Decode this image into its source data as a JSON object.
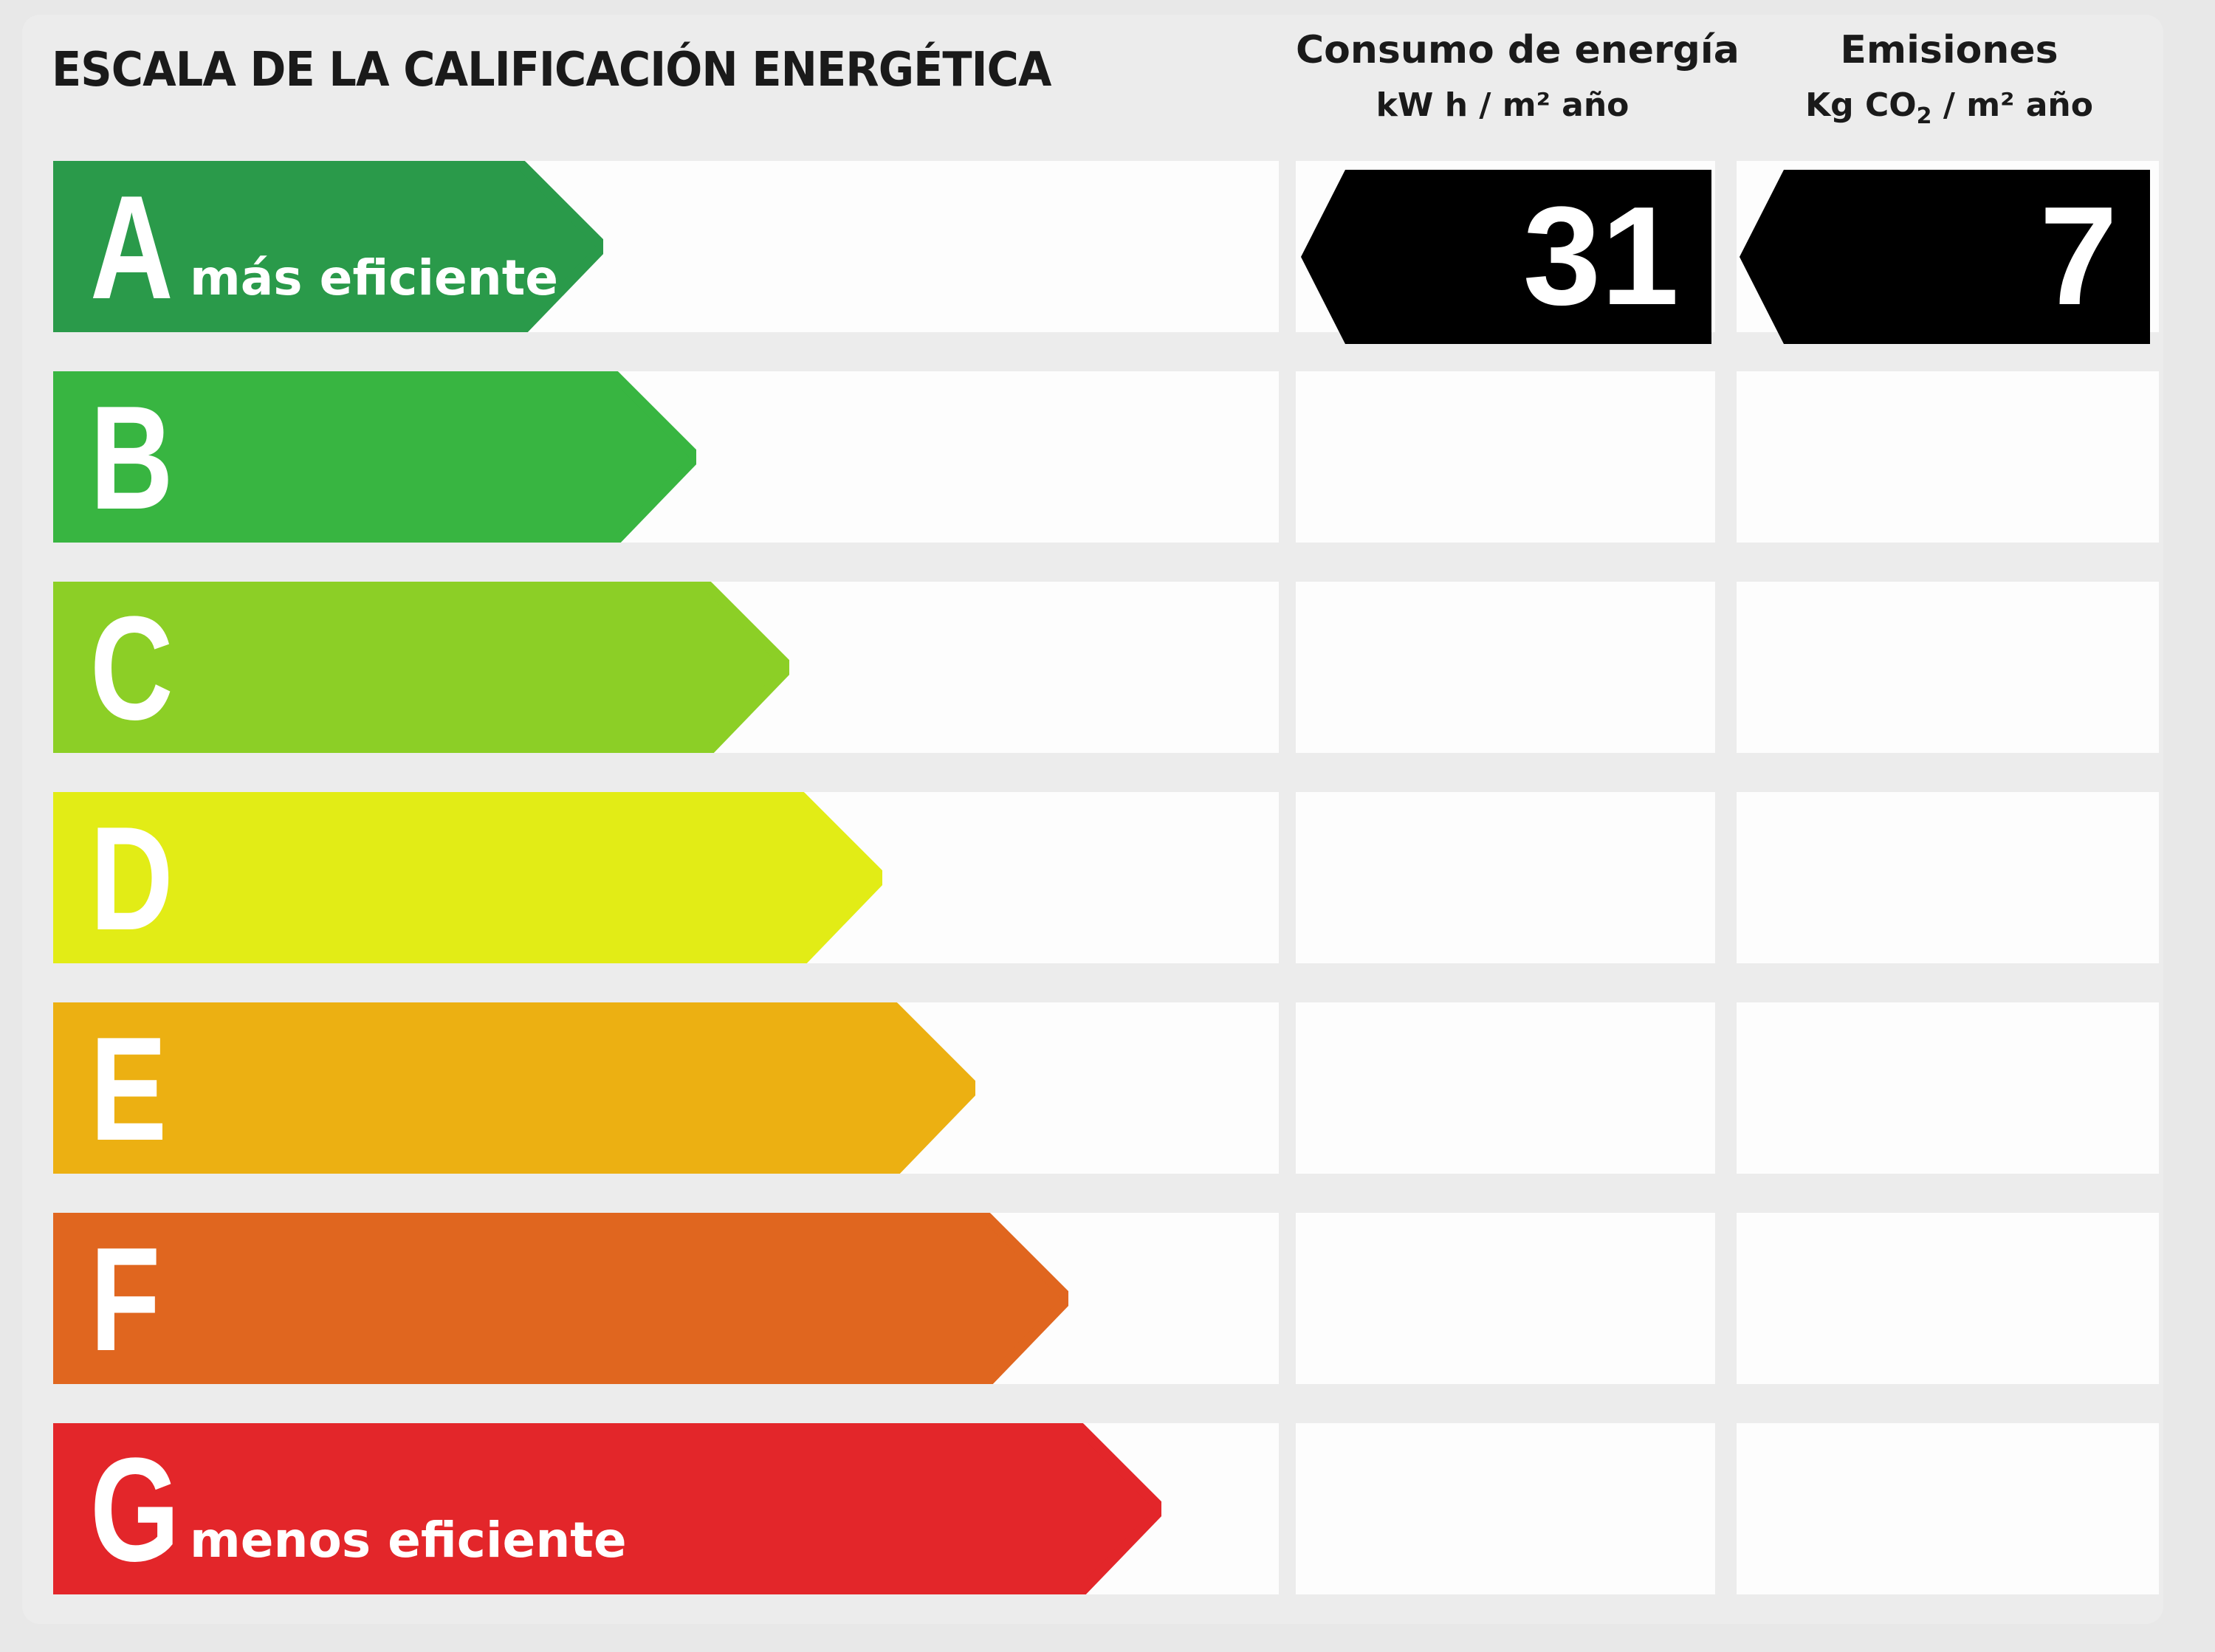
{
  "header": {
    "title": "ESCALA DE LA CALIFICACIÓN ENERGÉTICA",
    "energy_col": {
      "line1": "Consumo de energía",
      "line2_pre": "kW h / m² año"
    },
    "emissions_col": {
      "line1": "Emisiones",
      "line2_pre": "Kg CO",
      "line2_sub": "2",
      "line2_post": " / m² año"
    }
  },
  "scale": [
    {
      "letter": "A",
      "label": "más eficiente",
      "color": "#2a9a4a"
    },
    {
      "letter": "B",
      "label": "",
      "color": "#38b541"
    },
    {
      "letter": "C",
      "label": "",
      "color": "#8ccf26"
    },
    {
      "letter": "D",
      "label": "",
      "color": "#e2ec16"
    },
    {
      "letter": "E",
      "label": "",
      "color": "#ecb012"
    },
    {
      "letter": "F",
      "label": "",
      "color": "#e0661f"
    },
    {
      "letter": "G",
      "label": "menos eficiente",
      "color": "#e3262a"
    }
  ],
  "rating": {
    "energy_value": "31",
    "emissions_value": "7",
    "box_color": "#000000"
  }
}
